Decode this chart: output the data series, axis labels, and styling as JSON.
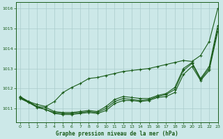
{
  "title": "Graphe pression niveau de la mer (hPa)",
  "bg_color": "#cce8e8",
  "grid_color": "#aacccc",
  "line_color": "#1a5c1a",
  "xlim": [
    -0.5,
    23
  ],
  "ylim": [
    1010.3,
    1016.3
  ],
  "yticks": [
    1011,
    1012,
    1013,
    1014,
    1015,
    1016
  ],
  "xticks": [
    0,
    1,
    2,
    3,
    4,
    5,
    6,
    7,
    8,
    9,
    10,
    11,
    12,
    13,
    14,
    15,
    16,
    17,
    18,
    19,
    20,
    21,
    22,
    23
  ],
  "series_upper_x": [
    0,
    1,
    2,
    3,
    4,
    5,
    6,
    7,
    8,
    9,
    10,
    11,
    12,
    13,
    14,
    15,
    16,
    17,
    18,
    19,
    20,
    21,
    22,
    23
  ],
  "series_upper_y": [
    1011.55,
    1011.35,
    1011.2,
    1011.1,
    1011.35,
    1011.8,
    1012.05,
    1012.25,
    1012.5,
    1012.55,
    1012.65,
    1012.75,
    1012.85,
    1012.9,
    1012.95,
    1013.0,
    1013.1,
    1013.2,
    1013.3,
    1013.4,
    1013.35,
    1013.65,
    1014.35,
    1016.0
  ],
  "series_mid1_x": [
    0,
    1,
    2,
    3,
    4,
    5,
    6,
    7,
    8,
    9,
    10,
    11,
    12,
    13,
    14,
    15,
    16,
    17,
    18,
    19,
    20,
    21,
    22,
    23
  ],
  "series_mid1_y": [
    1011.6,
    1011.35,
    1011.1,
    1011.05,
    1010.85,
    1010.8,
    1010.8,
    1010.85,
    1010.9,
    1010.85,
    1011.1,
    1011.45,
    1011.6,
    1011.55,
    1011.5,
    1011.5,
    1011.65,
    1011.75,
    1012.05,
    1013.0,
    1013.3,
    1012.5,
    1013.1,
    1015.15
  ],
  "series_mid2_x": [
    0,
    1,
    2,
    3,
    4,
    5,
    6,
    7,
    8,
    9,
    10,
    11,
    12,
    13,
    14,
    15,
    16,
    17,
    18,
    19,
    20,
    21,
    22,
    23
  ],
  "series_mid2_y": [
    1011.55,
    1011.3,
    1011.05,
    1010.95,
    1010.8,
    1010.75,
    1010.75,
    1010.8,
    1010.85,
    1010.8,
    1011.0,
    1011.35,
    1011.5,
    1011.45,
    1011.4,
    1011.45,
    1011.6,
    1011.7,
    1011.95,
    1012.9,
    1013.25,
    1012.45,
    1013.0,
    1015.0
  ],
  "series_low_x": [
    0,
    1,
    2,
    3,
    4,
    5,
    6,
    7,
    8,
    9,
    10,
    11,
    12,
    13,
    14,
    15,
    16,
    17,
    18,
    19,
    20,
    21,
    22,
    23
  ],
  "series_low_y": [
    1011.5,
    1011.3,
    1011.1,
    1010.95,
    1010.75,
    1010.7,
    1010.7,
    1010.75,
    1010.8,
    1010.75,
    1010.9,
    1011.25,
    1011.4,
    1011.4,
    1011.35,
    1011.4,
    1011.55,
    1011.6,
    1011.8,
    1012.7,
    1013.1,
    1012.4,
    1012.9,
    1014.85
  ]
}
